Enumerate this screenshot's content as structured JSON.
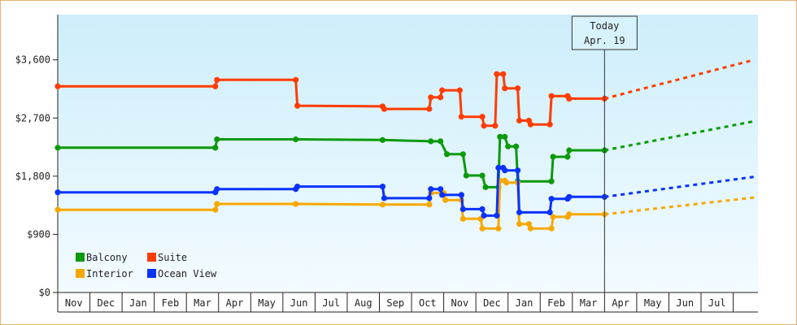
{
  "chart_data": {
    "type": "line",
    "title": "",
    "xlabel": "",
    "ylabel": "",
    "ylim": [
      0,
      4300
    ],
    "y_ticks": [
      "$0",
      "$900",
      "$1,800",
      "$2,700",
      "$3,600"
    ],
    "y_tick_values": [
      0,
      900,
      1800,
      2700,
      3600
    ],
    "months": [
      "Nov",
      "Dec",
      "Jan",
      "Feb",
      "Mar",
      "Apr",
      "May",
      "Jun",
      "Jul",
      "Aug",
      "Sep",
      "Oct",
      "Nov",
      "Dec",
      "Jan",
      "Feb",
      "Mar",
      "Apr",
      "May",
      "Jun",
      "Jul"
    ],
    "today_label_1": "Today",
    "today_label_2": "Apr. 19",
    "today_month_index": 17,
    "grid": false,
    "legend_position": "bottom-left",
    "series": [
      {
        "name": "Balcony",
        "color": "#0a9a0a",
        "points": [
          [
            0,
            2240
          ],
          [
            4.9,
            2240
          ],
          [
            4.95,
            2370
          ],
          [
            7.4,
            2370
          ],
          [
            10.1,
            2360
          ],
          [
            11.6,
            2340
          ],
          [
            11.9,
            2340
          ],
          [
            12.1,
            2140
          ],
          [
            12.6,
            2140
          ],
          [
            12.7,
            1810
          ],
          [
            13.2,
            1810
          ],
          [
            13.3,
            1630
          ],
          [
            13.7,
            1630
          ],
          [
            13.75,
            2410
          ],
          [
            13.9,
            2410
          ],
          [
            14.0,
            2260
          ],
          [
            14.25,
            2260
          ],
          [
            14.3,
            1720
          ],
          [
            15.35,
            1720
          ],
          [
            15.4,
            2100
          ],
          [
            15.85,
            2100
          ],
          [
            15.9,
            2200
          ],
          [
            17.0,
            2200
          ]
        ],
        "projection": [
          [
            17.0,
            2200
          ],
          [
            21.65,
            2650
          ]
        ]
      },
      {
        "name": "Suite",
        "color": "#ff3c00",
        "points": [
          [
            0,
            3190
          ],
          [
            4.9,
            3190
          ],
          [
            4.95,
            3290
          ],
          [
            7.4,
            3290
          ],
          [
            7.45,
            2890
          ],
          [
            10.1,
            2880
          ],
          [
            10.15,
            2840
          ],
          [
            11.55,
            2840
          ],
          [
            11.6,
            3020
          ],
          [
            11.9,
            3020
          ],
          [
            11.95,
            3130
          ],
          [
            12.5,
            3130
          ],
          [
            12.55,
            2720
          ],
          [
            13.2,
            2720
          ],
          [
            13.25,
            2580
          ],
          [
            13.6,
            2580
          ],
          [
            13.65,
            3380
          ],
          [
            13.85,
            3380
          ],
          [
            13.9,
            3160
          ],
          [
            14.3,
            3160
          ],
          [
            14.35,
            2660
          ],
          [
            14.65,
            2660
          ],
          [
            14.7,
            2600
          ],
          [
            15.3,
            2600
          ],
          [
            15.35,
            3040
          ],
          [
            15.85,
            3040
          ],
          [
            15.9,
            3000
          ],
          [
            17.0,
            3000
          ]
        ],
        "projection": [
          [
            17.0,
            3000
          ],
          [
            21.65,
            3600
          ]
        ]
      },
      {
        "name": "Interior",
        "color": "#f7a800",
        "points": [
          [
            0,
            1280
          ],
          [
            4.9,
            1280
          ],
          [
            4.95,
            1370
          ],
          [
            7.4,
            1370
          ],
          [
            10.1,
            1360
          ],
          [
            11.55,
            1360
          ],
          [
            11.6,
            1540
          ],
          [
            12.0,
            1540
          ],
          [
            12.05,
            1430
          ],
          [
            12.55,
            1430
          ],
          [
            12.6,
            1140
          ],
          [
            13.15,
            1140
          ],
          [
            13.2,
            990
          ],
          [
            13.7,
            990
          ],
          [
            13.75,
            1730
          ],
          [
            13.9,
            1730
          ],
          [
            13.95,
            1700
          ],
          [
            14.3,
            1700
          ],
          [
            14.35,
            1060
          ],
          [
            14.65,
            1060
          ],
          [
            14.7,
            990
          ],
          [
            15.35,
            990
          ],
          [
            15.4,
            1170
          ],
          [
            15.85,
            1170
          ],
          [
            15.9,
            1210
          ],
          [
            17.0,
            1210
          ]
        ],
        "projection": [
          [
            17.0,
            1210
          ],
          [
            21.65,
            1470
          ]
        ]
      },
      {
        "name": "Ocean View",
        "color": "#0a32ff",
        "points": [
          [
            0,
            1550
          ],
          [
            4.9,
            1550
          ],
          [
            4.95,
            1600
          ],
          [
            7.4,
            1600
          ],
          [
            7.45,
            1640
          ],
          [
            10.1,
            1640
          ],
          [
            10.15,
            1460
          ],
          [
            11.55,
            1460
          ],
          [
            11.6,
            1600
          ],
          [
            11.9,
            1600
          ],
          [
            11.95,
            1510
          ],
          [
            12.55,
            1510
          ],
          [
            12.6,
            1290
          ],
          [
            13.2,
            1290
          ],
          [
            13.25,
            1190
          ],
          [
            13.65,
            1190
          ],
          [
            13.7,
            1930
          ],
          [
            13.85,
            1930
          ],
          [
            13.9,
            1890
          ],
          [
            14.3,
            1890
          ],
          [
            14.35,
            1240
          ],
          [
            15.3,
            1240
          ],
          [
            15.35,
            1450
          ],
          [
            15.85,
            1450
          ],
          [
            15.9,
            1480
          ],
          [
            17.0,
            1480
          ]
        ],
        "projection": [
          [
            17.0,
            1480
          ],
          [
            21.65,
            1790
          ]
        ]
      }
    ]
  }
}
